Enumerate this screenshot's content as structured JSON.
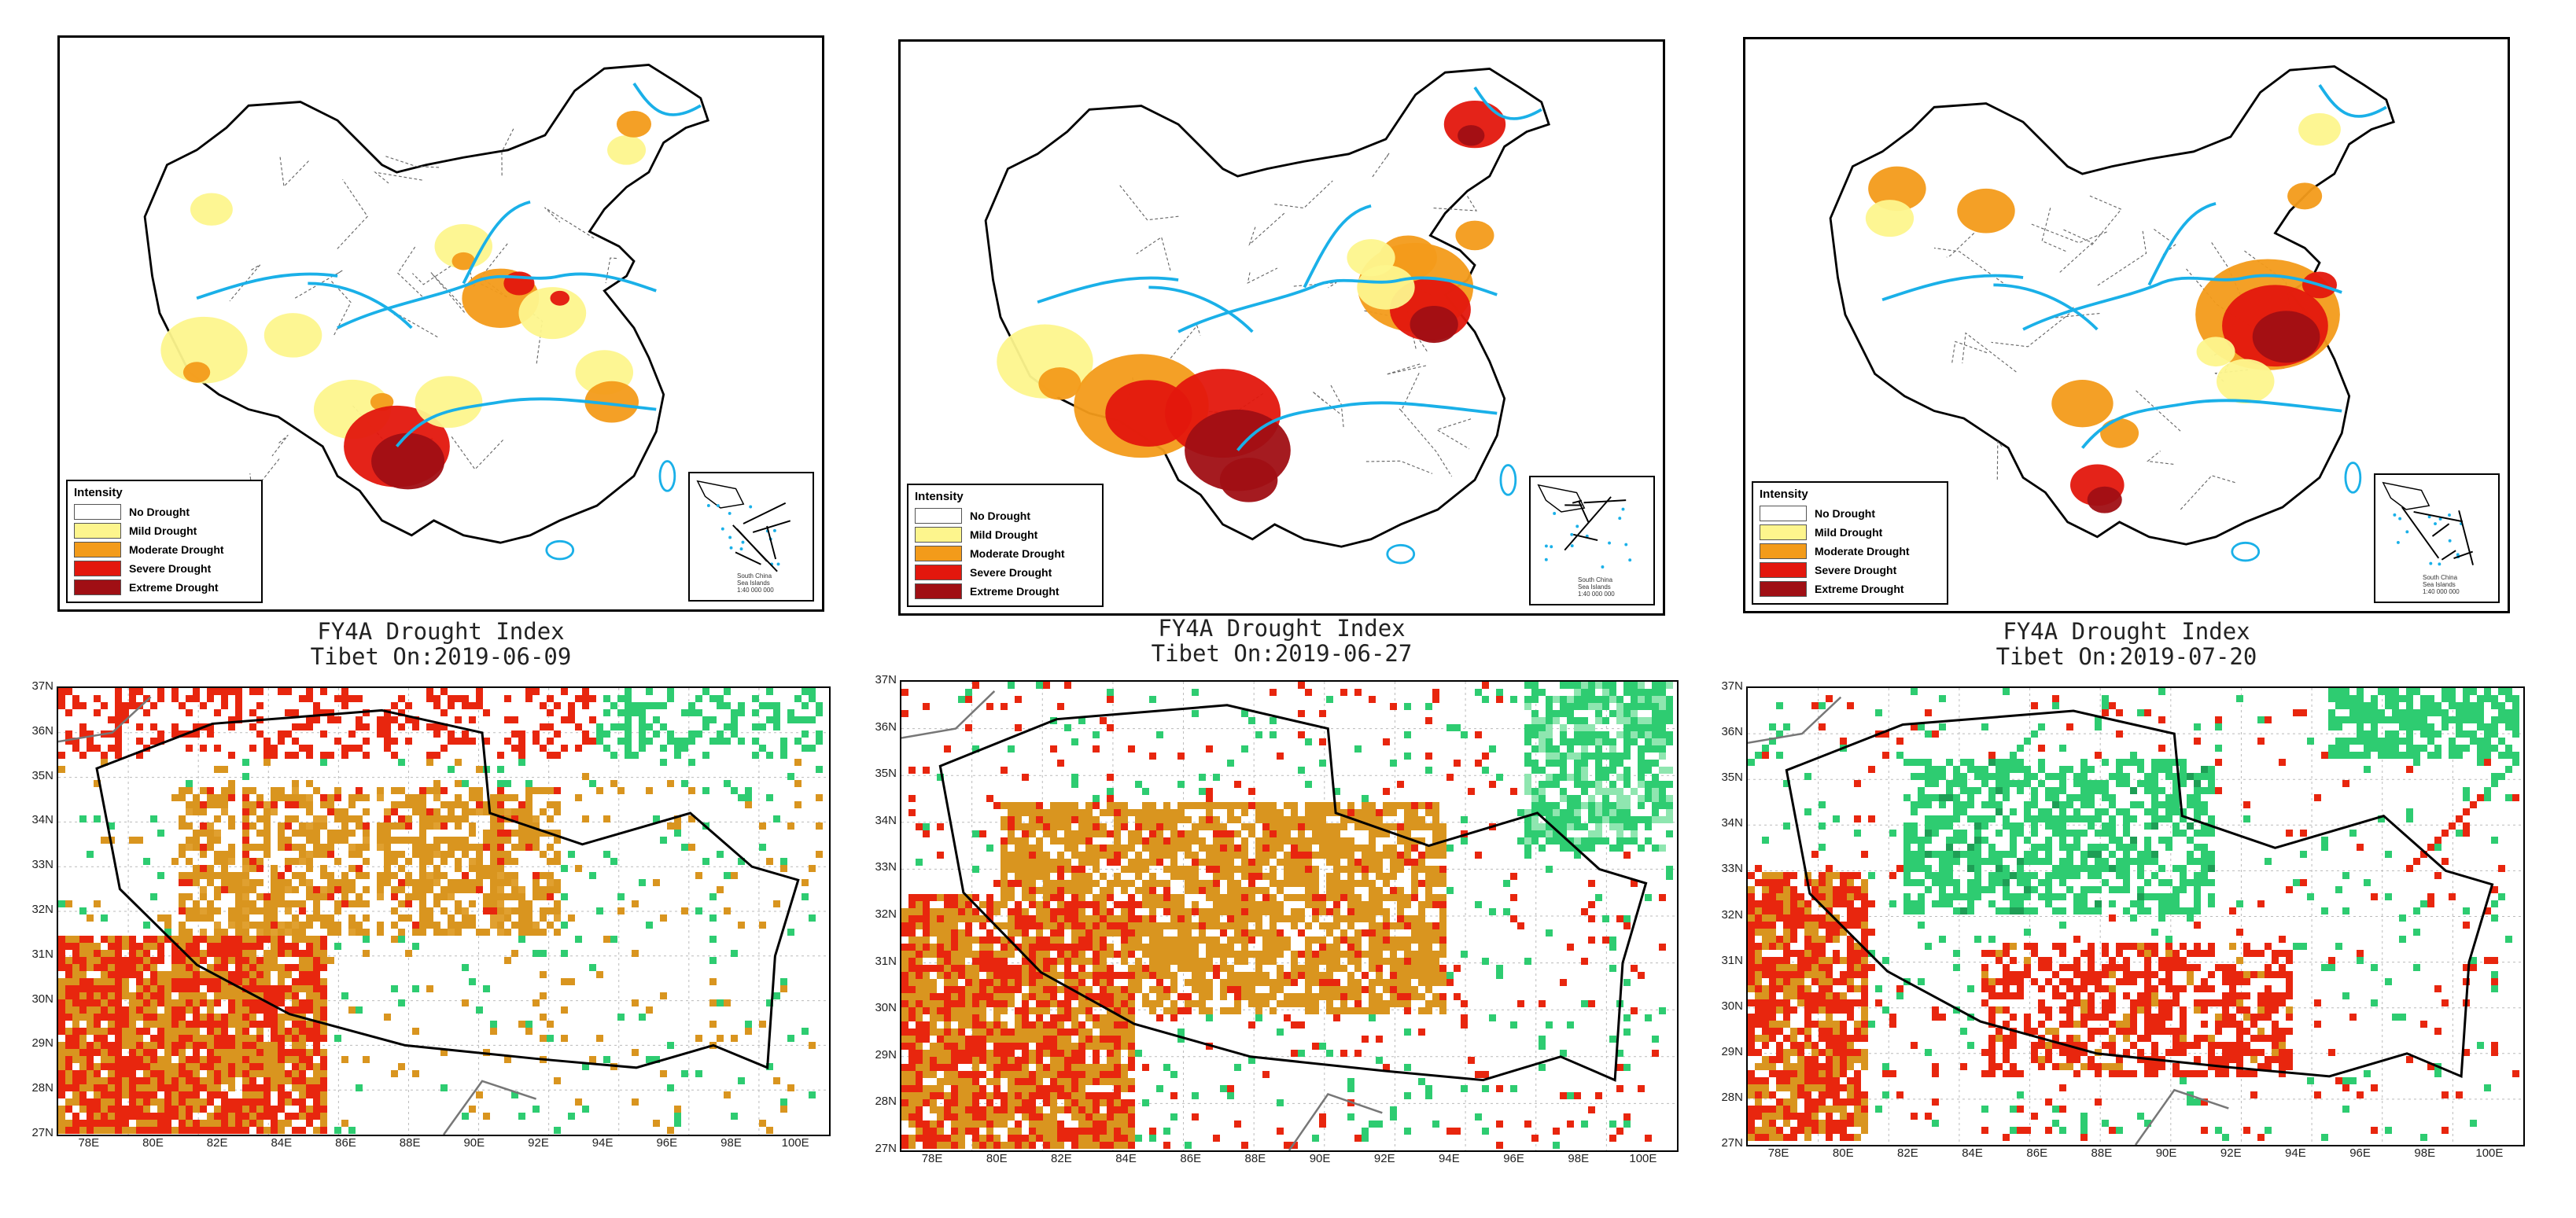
{
  "legend": {
    "title": "Intensity",
    "items": [
      {
        "label": "No Drought",
        "color": "#ffffff"
      },
      {
        "label": "Mild Drought",
        "color": "#fdf58d"
      },
      {
        "label": "Moderate Drought",
        "color": "#f39b1a"
      },
      {
        "label": "Severe Drought",
        "color": "#e3170d"
      },
      {
        "label": "Extreme Drought",
        "color": "#a00f14"
      }
    ]
  },
  "inset": {
    "line1": "South China",
    "line2": "Sea Islands",
    "scale": "1:40 000 000"
  },
  "maps": [
    {
      "title": "FY4A Drought Index",
      "subtitle": "Tibet On:2019-06-09"
    },
    {
      "title": "FY4A Drought Index",
      "subtitle": "Tibet On:2019-06-27"
    },
    {
      "title": "FY4A Drought Index",
      "subtitle": "Tibet On:2019-07-20"
    }
  ],
  "axes": {
    "y_ticks": [
      "37N",
      "36N",
      "35N",
      "34N",
      "33N",
      "32N",
      "31N",
      "30N",
      "29N",
      "28N",
      "27N"
    ],
    "x_ticks": [
      "78E",
      "80E",
      "82E",
      "84E",
      "86E",
      "88E",
      "90E",
      "92E",
      "94E",
      "96E",
      "98E",
      "100E"
    ]
  },
  "colors": {
    "river": "#1ab0e8",
    "border": "#000000",
    "green": "#2ecc71",
    "orange": "#d9951f",
    "red": "#e8260e"
  }
}
